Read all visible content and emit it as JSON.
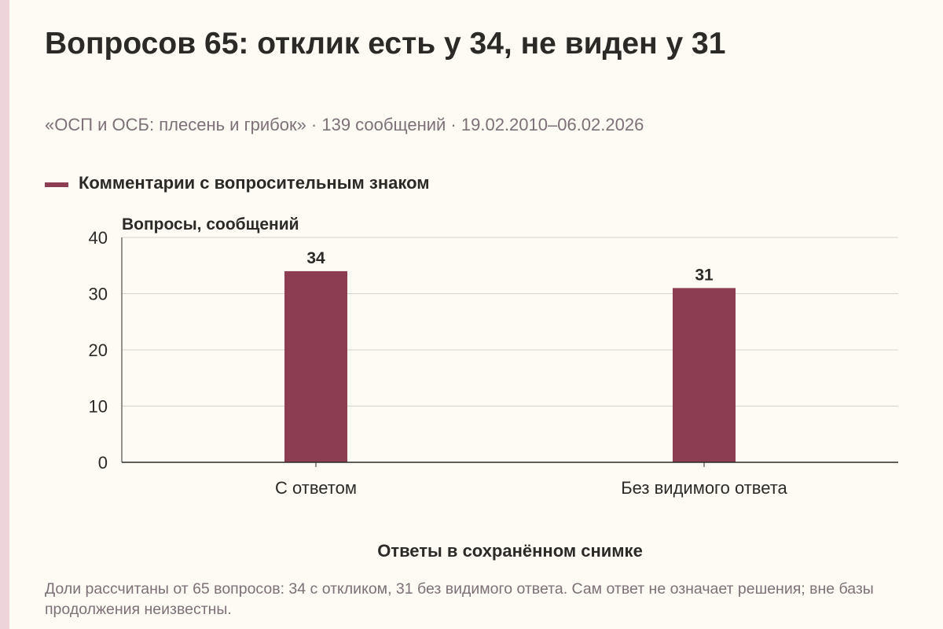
{
  "title": "Вопросов 65: отклик есть у 34, не виден у 31",
  "subtitle": "«ОСП и ОСБ: плесень и грибок» · 139 сообщений · 19.02.2010–06.02.2026",
  "legend": {
    "label": "Комментарии с вопросительным знаком",
    "color": "#8c3d52"
  },
  "note": "Доли рассчитаны от 65 вопросов: 34 с откликом, 31 без видимого ответа. Сам ответ не означает решения; вне базы продолжения неизвестны.",
  "colors": {
    "bar": "#8c3d52",
    "grid": "#d6d2cb",
    "axis": "#2b2a27",
    "background": "#fdfbf4"
  },
  "chart_data": {
    "type": "bar",
    "title": "Вопросов 65: отклик есть у 34, не виден у 31",
    "xlabel": "Ответы в сохранённом снимке",
    "ylabel": "Вопросы, сообщений",
    "categories": [
      "С ответом",
      "Без видимого ответа"
    ],
    "series": [
      {
        "name": "Комментарии с вопросительным знаком",
        "values": [
          34,
          31
        ]
      }
    ],
    "data_labels": [
      "34",
      "31"
    ],
    "ylim": [
      0,
      40
    ],
    "yticks": [
      0,
      10,
      20,
      30,
      40
    ],
    "grid": true,
    "legend_position": "top-left"
  }
}
